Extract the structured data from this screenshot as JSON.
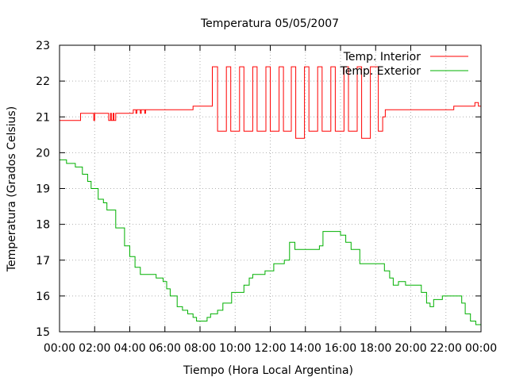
{
  "chart_data": {
    "type": "line",
    "title": "Temperatura 05/05/2007",
    "xlabel": "Tiempo (Hora Local Argentina)",
    "ylabel": "Temperatura (Grados Celsius)",
    "xlim": [
      0,
      24
    ],
    "ylim": [
      15,
      23
    ],
    "grid": true,
    "legend_position": "top-right",
    "x_ticks": [
      {
        "value": 0,
        "label": "00:00"
      },
      {
        "value": 2,
        "label": "02:00"
      },
      {
        "value": 4,
        "label": "04:00"
      },
      {
        "value": 6,
        "label": "06:00"
      },
      {
        "value": 8,
        "label": "08:00"
      },
      {
        "value": 10,
        "label": "10:00"
      },
      {
        "value": 12,
        "label": "12:00"
      },
      {
        "value": 14,
        "label": "14:00"
      },
      {
        "value": 16,
        "label": "16:00"
      },
      {
        "value": 18,
        "label": "18:00"
      },
      {
        "value": 20,
        "label": "20:00"
      },
      {
        "value": 22,
        "label": "22:00"
      },
      {
        "value": 24,
        "label": "00:00"
      }
    ],
    "y_ticks": [
      {
        "value": 15,
        "label": "15"
      },
      {
        "value": 16,
        "label": "16"
      },
      {
        "value": 17,
        "label": "17"
      },
      {
        "value": 18,
        "label": "18"
      },
      {
        "value": 19,
        "label": "19"
      },
      {
        "value": 20,
        "label": "20"
      },
      {
        "value": 21,
        "label": "21"
      },
      {
        "value": 22,
        "label": "22"
      },
      {
        "value": 23,
        "label": "23"
      }
    ],
    "series": [
      {
        "name": "Temp. Interior",
        "color": "#ff0000",
        "points": [
          [
            0.0,
            20.9
          ],
          [
            1.15,
            20.9
          ],
          [
            1.2,
            21.1
          ],
          [
            1.9,
            21.1
          ],
          [
            1.95,
            20.9
          ],
          [
            2.0,
            21.1
          ],
          [
            2.75,
            21.1
          ],
          [
            2.8,
            20.9
          ],
          [
            2.9,
            21.1
          ],
          [
            2.95,
            20.9
          ],
          [
            3.05,
            21.1
          ],
          [
            3.1,
            20.9
          ],
          [
            3.2,
            21.1
          ],
          [
            4.15,
            21.1
          ],
          [
            4.2,
            21.2
          ],
          [
            4.35,
            21.1
          ],
          [
            4.4,
            21.2
          ],
          [
            4.6,
            21.1
          ],
          [
            4.65,
            21.2
          ],
          [
            4.85,
            21.1
          ],
          [
            4.9,
            21.2
          ],
          [
            7.55,
            21.2
          ],
          [
            7.6,
            21.3
          ],
          [
            8.1,
            21.3
          ],
          [
            8.7,
            22.4
          ],
          [
            8.85,
            22.4
          ],
          [
            9.0,
            20.6
          ],
          [
            9.5,
            22.4
          ],
          [
            9.75,
            20.6
          ],
          [
            10.25,
            22.4
          ],
          [
            10.5,
            20.6
          ],
          [
            11.0,
            22.4
          ],
          [
            11.25,
            20.6
          ],
          [
            11.75,
            22.4
          ],
          [
            12.0,
            20.6
          ],
          [
            12.5,
            22.4
          ],
          [
            12.75,
            20.6
          ],
          [
            13.2,
            22.4
          ],
          [
            13.45,
            20.4
          ],
          [
            13.95,
            22.4
          ],
          [
            14.2,
            20.6
          ],
          [
            14.7,
            22.4
          ],
          [
            14.95,
            20.6
          ],
          [
            15.45,
            22.4
          ],
          [
            15.7,
            20.6
          ],
          [
            16.2,
            22.4
          ],
          [
            16.45,
            20.6
          ],
          [
            16.95,
            22.4
          ],
          [
            17.2,
            20.4
          ],
          [
            17.7,
            22.4
          ],
          [
            17.95,
            22.4
          ],
          [
            18.15,
            20.6
          ],
          [
            18.4,
            21.0
          ],
          [
            18.55,
            21.2
          ],
          [
            22.4,
            21.2
          ],
          [
            22.45,
            21.3
          ],
          [
            23.6,
            21.3
          ],
          [
            23.65,
            21.4
          ],
          [
            23.85,
            21.3
          ],
          [
            24.0,
            21.3
          ]
        ]
      },
      {
        "name": "Temp. Exterior",
        "color": "#00b000",
        "points": [
          [
            0.0,
            19.8
          ],
          [
            0.4,
            19.7
          ],
          [
            0.9,
            19.6
          ],
          [
            1.3,
            19.4
          ],
          [
            1.6,
            19.2
          ],
          [
            1.8,
            19.0
          ],
          [
            2.2,
            18.7
          ],
          [
            2.5,
            18.6
          ],
          [
            2.7,
            18.4
          ],
          [
            3.2,
            17.9
          ],
          [
            3.7,
            17.4
          ],
          [
            4.0,
            17.1
          ],
          [
            4.3,
            16.8
          ],
          [
            4.6,
            16.6
          ],
          [
            5.3,
            16.6
          ],
          [
            5.5,
            16.5
          ],
          [
            5.9,
            16.4
          ],
          [
            6.1,
            16.2
          ],
          [
            6.3,
            16.0
          ],
          [
            6.7,
            15.7
          ],
          [
            7.0,
            15.6
          ],
          [
            7.3,
            15.5
          ],
          [
            7.6,
            15.4
          ],
          [
            7.8,
            15.3
          ],
          [
            8.2,
            15.3
          ],
          [
            8.4,
            15.4
          ],
          [
            8.6,
            15.5
          ],
          [
            9.0,
            15.6
          ],
          [
            9.3,
            15.8
          ],
          [
            9.8,
            16.1
          ],
          [
            10.2,
            16.1
          ],
          [
            10.5,
            16.3
          ],
          [
            10.8,
            16.5
          ],
          [
            11.0,
            16.6
          ],
          [
            11.5,
            16.6
          ],
          [
            11.7,
            16.7
          ],
          [
            12.0,
            16.7
          ],
          [
            12.2,
            16.9
          ],
          [
            12.8,
            17.0
          ],
          [
            13.1,
            17.5
          ],
          [
            13.4,
            17.3
          ],
          [
            14.8,
            17.4
          ],
          [
            15.0,
            17.8
          ],
          [
            15.8,
            17.8
          ],
          [
            16.0,
            17.7
          ],
          [
            16.3,
            17.5
          ],
          [
            16.6,
            17.3
          ],
          [
            17.1,
            16.9
          ],
          [
            18.3,
            16.9
          ],
          [
            18.5,
            16.7
          ],
          [
            18.8,
            16.5
          ],
          [
            19.0,
            16.3
          ],
          [
            19.3,
            16.4
          ],
          [
            19.7,
            16.3
          ],
          [
            20.3,
            16.3
          ],
          [
            20.6,
            16.1
          ],
          [
            20.9,
            15.8
          ],
          [
            21.1,
            15.7
          ],
          [
            21.3,
            15.9
          ],
          [
            21.6,
            15.9
          ],
          [
            21.8,
            16.0
          ],
          [
            22.7,
            16.0
          ],
          [
            22.9,
            15.8
          ],
          [
            23.1,
            15.5
          ],
          [
            23.4,
            15.3
          ],
          [
            23.7,
            15.2
          ],
          [
            24.0,
            15.2
          ]
        ]
      }
    ]
  }
}
